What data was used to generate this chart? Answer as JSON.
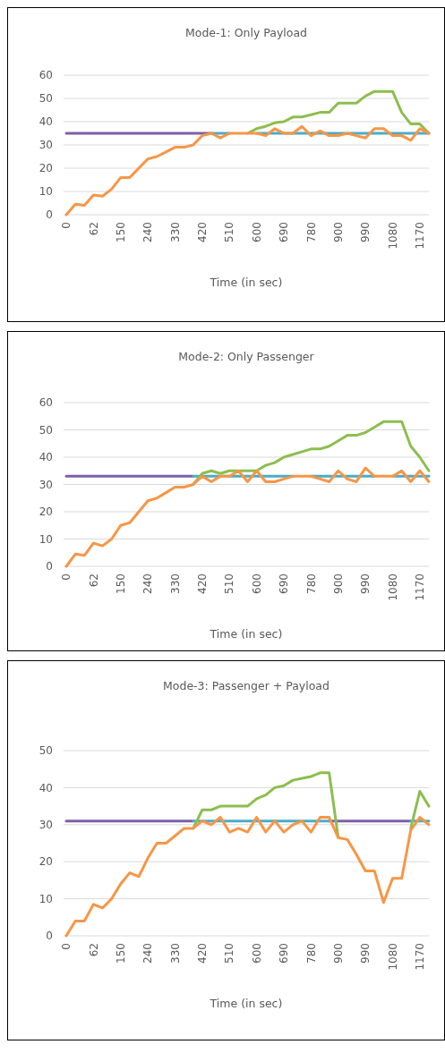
{
  "chart_data": [
    {
      "type": "line",
      "title": "Mode-1: Only Payload",
      "xlabel": "Time (in sec)",
      "categories": [
        "0",
        null,
        null,
        "62",
        null,
        null,
        "150",
        null,
        null,
        "240",
        null,
        null,
        "330",
        null,
        null,
        "420",
        null,
        null,
        "510",
        null,
        null,
        "600",
        null,
        null,
        "690",
        null,
        null,
        "780",
        null,
        null,
        "900",
        null,
        null,
        "990",
        null,
        null,
        "1080",
        null,
        null,
        "1170",
        null
      ],
      "ylim": [
        0,
        60
      ],
      "yticks": [
        0,
        10,
        20,
        30,
        40,
        50,
        60
      ],
      "grid": "y",
      "series": [
        {
          "color": "#7e5fa6",
          "values": [
            35,
            35,
            35,
            35,
            35,
            35,
            35,
            35,
            35,
            35,
            35,
            35,
            35,
            35,
            35,
            35,
            35,
            null,
            null,
            null,
            null,
            null,
            null,
            null,
            null,
            null,
            null,
            null,
            null,
            null,
            null,
            null,
            null,
            null,
            null,
            null,
            null,
            null,
            null,
            null,
            null
          ]
        },
        {
          "color": "#4bacc6",
          "values": [
            null,
            null,
            null,
            null,
            null,
            null,
            null,
            null,
            null,
            null,
            null,
            null,
            null,
            null,
            null,
            null,
            35,
            35,
            35,
            null,
            null,
            35,
            35,
            35,
            35,
            35,
            35,
            35,
            35,
            35,
            35,
            35,
            35,
            35,
            35,
            35,
            35,
            35,
            35,
            35,
            35
          ]
        },
        {
          "color": "#8cbe4f",
          "values": [
            null,
            null,
            null,
            null,
            null,
            null,
            null,
            null,
            null,
            null,
            null,
            null,
            null,
            null,
            null,
            null,
            null,
            null,
            null,
            null,
            35,
            37,
            38,
            39.5,
            40,
            42,
            42,
            43,
            44,
            44,
            48,
            48,
            48,
            51,
            53,
            53,
            53,
            44,
            39,
            39,
            35
          ]
        },
        {
          "color": "#f79646",
          "values": [
            0,
            4.5,
            4,
            8.5,
            8,
            11,
            16,
            16,
            20,
            24,
            25,
            27,
            29,
            29,
            30,
            34,
            35,
            33,
            35,
            35,
            35,
            35,
            34,
            37,
            35,
            35,
            38,
            34,
            36,
            34,
            34,
            35,
            34,
            33,
            37,
            37,
            34,
            34,
            32,
            37,
            35
          ]
        }
      ]
    },
    {
      "type": "line",
      "title": "Mode-2: Only Passenger",
      "xlabel": "Time (in sec)",
      "categories": [
        "0",
        null,
        null,
        "62",
        null,
        null,
        "150",
        null,
        null,
        "240",
        null,
        null,
        "330",
        null,
        null,
        "420",
        null,
        null,
        "510",
        null,
        null,
        "600",
        null,
        null,
        "690",
        null,
        null,
        "780",
        null,
        null,
        "900",
        null,
        null,
        "990",
        null,
        null,
        "1080",
        null,
        null,
        "1170",
        null
      ],
      "ylim": [
        0,
        60
      ],
      "yticks": [
        0,
        10,
        20,
        30,
        40,
        50,
        60
      ],
      "grid": "y",
      "series": [
        {
          "color": "#7e5fa6",
          "values": [
            33,
            33,
            33,
            33,
            33,
            33,
            33,
            33,
            33,
            33,
            33,
            33,
            33,
            33,
            33,
            null,
            null,
            null,
            null,
            null,
            null,
            null,
            null,
            null,
            null,
            null,
            null,
            null,
            null,
            null,
            null,
            null,
            null,
            null,
            null,
            null,
            null,
            null,
            null,
            null,
            null
          ]
        },
        {
          "color": "#4bacc6",
          "values": [
            null,
            null,
            null,
            null,
            null,
            null,
            null,
            null,
            null,
            null,
            null,
            null,
            null,
            null,
            33,
            33,
            33,
            33,
            33,
            33,
            33,
            33,
            33,
            33,
            33,
            33,
            null,
            33,
            33,
            33,
            33,
            33,
            33,
            33,
            33,
            null,
            33,
            33,
            33,
            33,
            33
          ]
        },
        {
          "color": "#8cbe4f",
          "values": [
            null,
            null,
            null,
            null,
            null,
            null,
            null,
            null,
            null,
            null,
            null,
            null,
            null,
            null,
            30,
            34,
            35,
            34,
            35,
            35,
            35,
            35,
            37,
            38,
            40,
            41,
            42,
            43,
            43,
            44,
            46,
            48,
            48,
            49,
            51,
            53,
            53,
            53,
            44,
            40,
            35
          ]
        },
        {
          "color": "#f79646",
          "values": [
            0,
            4.5,
            4,
            8.5,
            7.5,
            10,
            15,
            16,
            20,
            24,
            25,
            27,
            29,
            29,
            30,
            33,
            31,
            33,
            33,
            35,
            31,
            35,
            31,
            31,
            32,
            33,
            33,
            33,
            32,
            31,
            35,
            32,
            31,
            36,
            33,
            33,
            33,
            35,
            31,
            35,
            31
          ]
        }
      ]
    },
    {
      "type": "line",
      "title": "Mode-3: Passenger + Payload",
      "xlabel": "Time (in sec)",
      "categories": [
        "0",
        null,
        null,
        "62",
        null,
        null,
        "150",
        null,
        null,
        "240",
        null,
        null,
        "330",
        null,
        null,
        "420",
        null,
        null,
        "510",
        null,
        null,
        "600",
        null,
        null,
        "690",
        null,
        null,
        "780",
        null,
        null,
        "900",
        null,
        null,
        "990",
        null,
        null,
        "1080",
        null,
        null,
        "1170",
        null
      ],
      "ylim": [
        0,
        50
      ],
      "yticks": [
        0,
        10,
        20,
        30,
        40,
        50
      ],
      "grid": "y",
      "series": [
        {
          "color": "#7e5fa6",
          "values": [
            31,
            31,
            31,
            31,
            31,
            31,
            31,
            31,
            31,
            31,
            31,
            31,
            31,
            31,
            31,
            null,
            null,
            null,
            null,
            null,
            null,
            null,
            null,
            null,
            null,
            null,
            null,
            null,
            null,
            31,
            31,
            31,
            31,
            31,
            31,
            31,
            31,
            31,
            31,
            null,
            null
          ]
        },
        {
          "color": "#4bacc6",
          "values": [
            null,
            null,
            null,
            null,
            null,
            null,
            null,
            null,
            null,
            null,
            null,
            null,
            null,
            null,
            31,
            31,
            31,
            31,
            31,
            31,
            31,
            31,
            31,
            31,
            31,
            31,
            31,
            31,
            31,
            31,
            null,
            null,
            null,
            null,
            null,
            null,
            null,
            null,
            31,
            31,
            31
          ]
        },
        {
          "color": "#8cbe4f",
          "values": [
            null,
            null,
            null,
            null,
            null,
            null,
            null,
            null,
            null,
            null,
            null,
            null,
            null,
            null,
            29,
            34,
            34,
            35,
            35,
            35,
            35,
            37,
            38,
            40,
            40.5,
            42,
            42.5,
            43,
            44,
            44,
            26.5,
            null,
            null,
            null,
            null,
            null,
            null,
            null,
            29,
            39,
            35
          ]
        },
        {
          "color": "#f79646",
          "values": [
            0,
            4,
            4,
            8.5,
            7.5,
            10,
            14,
            17,
            16,
            21,
            25,
            25,
            27,
            29,
            29,
            31,
            30,
            32,
            28,
            29,
            28,
            32,
            28,
            31,
            28,
            30,
            31,
            28,
            32,
            32,
            26.5,
            26,
            22,
            17.5,
            17.5,
            9,
            15.5,
            15.5,
            28.5,
            32,
            30
          ]
        }
      ]
    }
  ]
}
